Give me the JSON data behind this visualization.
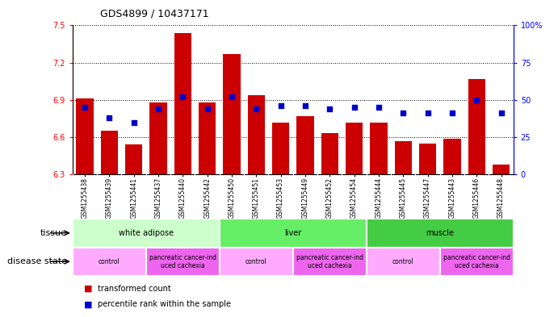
{
  "title": "GDS4899 / 10437171",
  "samples": [
    "GSM1255438",
    "GSM1255439",
    "GSM1255441",
    "GSM1255437",
    "GSM1255440",
    "GSM1255442",
    "GSM1255450",
    "GSM1255451",
    "GSM1255453",
    "GSM1255449",
    "GSM1255452",
    "GSM1255454",
    "GSM1255444",
    "GSM1255445",
    "GSM1255447",
    "GSM1255443",
    "GSM1255446",
    "GSM1255448"
  ],
  "transformed_count": [
    6.91,
    6.65,
    6.54,
    6.88,
    7.44,
    6.88,
    7.27,
    6.94,
    6.72,
    6.77,
    6.63,
    6.72,
    6.72,
    6.57,
    6.55,
    6.59,
    7.07,
    6.38
  ],
  "percentile_rank": [
    45,
    38,
    35,
    44,
    52,
    44,
    52,
    44,
    46,
    46,
    44,
    45,
    45,
    41,
    41,
    41,
    50,
    41
  ],
  "ylim_left": [
    6.3,
    7.5
  ],
  "ylim_right": [
    0,
    100
  ],
  "yticks_left": [
    6.3,
    6.6,
    6.9,
    7.2,
    7.5
  ],
  "yticks_right": [
    0,
    25,
    50,
    75,
    100
  ],
  "bar_color": "#cc0000",
  "dot_color": "#0000cc",
  "tissue_groups": [
    {
      "label": "white adipose",
      "start": 0,
      "end": 6,
      "color": "#ccffcc"
    },
    {
      "label": "liver",
      "start": 6,
      "end": 12,
      "color": "#66ee66"
    },
    {
      "label": "muscle",
      "start": 12,
      "end": 18,
      "color": "#44cc44"
    }
  ],
  "disease_groups": [
    {
      "label": "control",
      "start": 0,
      "end": 3,
      "color": "#ffaaff"
    },
    {
      "label": "pancreatic cancer-ind\nuced cachexia",
      "start": 3,
      "end": 6,
      "color": "#ee66ee"
    },
    {
      "label": "control",
      "start": 6,
      "end": 9,
      "color": "#ffaaff"
    },
    {
      "label": "pancreatic cancer-ind\nuced cachexia",
      "start": 9,
      "end": 12,
      "color": "#ee66ee"
    },
    {
      "label": "control",
      "start": 12,
      "end": 15,
      "color": "#ffaaff"
    },
    {
      "label": "pancreatic cancer-ind\nuced cachexia",
      "start": 15,
      "end": 18,
      "color": "#ee66ee"
    }
  ]
}
